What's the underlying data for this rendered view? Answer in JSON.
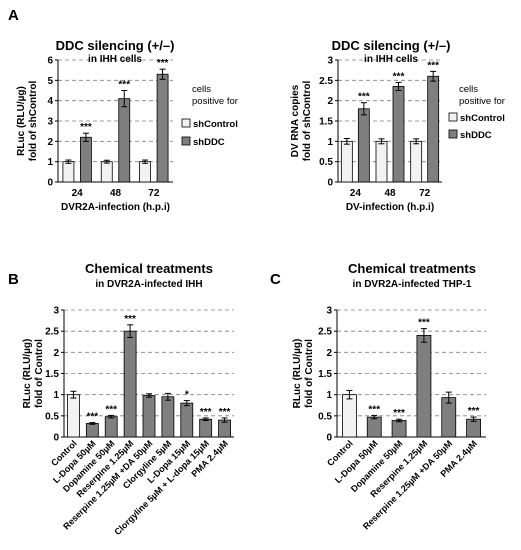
{
  "figure": {
    "panel_letters": [
      "A",
      "B",
      "C"
    ]
  },
  "colors": {
    "light_bar": "#f2f2f2",
    "dark_bar": "#7f7f7f",
    "axis": "#000000",
    "grid": "#808080"
  },
  "chart_data": [
    {
      "id": "A1",
      "type": "bar",
      "title": "DDC silencing (+/–)",
      "subtitle": "in IHH cells",
      "xlabel": "DVR2A-infection (h.p.i)",
      "ylabel": [
        "RLuc (RLU/µg)",
        "fold of shControl"
      ],
      "ylim": [
        0,
        6
      ],
      "yticks": [
        "0",
        "1",
        "2",
        "3",
        "4",
        "5",
        "6"
      ],
      "grid": "dashed-horizontal",
      "categories": [
        "24",
        "48",
        "72"
      ],
      "legend_title": [
        "cells",
        "positive for"
      ],
      "legend_position": "right",
      "series": [
        {
          "name": "shControl",
          "color": "#f2f2f2",
          "values": [
            1.0,
            1.0,
            1.0
          ],
          "errors": [
            0.08,
            0.07,
            0.08
          ],
          "sig": [
            "",
            "",
            ""
          ]
        },
        {
          "name": "shDDC",
          "color": "#7f7f7f",
          "values": [
            2.2,
            4.1,
            5.3
          ],
          "errors": [
            0.2,
            0.4,
            0.25
          ],
          "sig": [
            "***",
            "***",
            "***"
          ]
        }
      ]
    },
    {
      "id": "A2",
      "type": "bar",
      "title": "DDC silencing (+/–)",
      "subtitle": "in IHH cells",
      "xlabel": "DV-infection (h.p.i)",
      "ylabel": [
        "DV RNA copies",
        "fold of shControl"
      ],
      "ylim": [
        0,
        3
      ],
      "yticks": [
        "0",
        "0.5",
        "1",
        "1.5",
        "2",
        "2.5",
        "3"
      ],
      "grid": "dashed-horizontal",
      "categories": [
        "24",
        "48",
        "72"
      ],
      "legend_title": [
        "cells",
        "positive for"
      ],
      "legend_position": "right",
      "series": [
        {
          "name": "shControl",
          "color": "#f2f2f2",
          "values": [
            1.0,
            1.0,
            1.0
          ],
          "errors": [
            0.07,
            0.06,
            0.06
          ],
          "sig": [
            "",
            "",
            ""
          ]
        },
        {
          "name": "shDDC",
          "color": "#7f7f7f",
          "values": [
            1.8,
            2.35,
            2.6
          ],
          "errors": [
            0.15,
            0.1,
            0.12
          ],
          "sig": [
            "***",
            "***",
            "***"
          ]
        }
      ]
    },
    {
      "id": "B",
      "type": "bar",
      "title": "Chemical treatments",
      "subtitle": "in DVR2A-infected IHH",
      "xlabel": "",
      "ylabel": [
        "RLuc (RLU/µg)",
        "fold of Control"
      ],
      "ylim": [
        0,
        3
      ],
      "yticks": [
        "0",
        "0.5",
        "1",
        "1.5",
        "2",
        "2.5",
        "3"
      ],
      "grid": "dashed-horizontal",
      "categories": [
        "Control",
        "L-Dopa 50µM",
        "Dopamine 50µM",
        "Reserpine 1.25µM",
        "Reserpine 1.25µM +DA 50µM",
        "Clorgyline 5µM",
        "L-Dopa 15µM",
        "Clorgyline 5µM + L-dopa 15µM",
        "PMA 2.4µM"
      ],
      "colors": [
        "#f2f2f2",
        "#7f7f7f",
        "#7f7f7f",
        "#7f7f7f",
        "#7f7f7f",
        "#7f7f7f",
        "#7f7f7f",
        "#7f7f7f",
        "#7f7f7f"
      ],
      "values": [
        1.0,
        0.32,
        0.48,
        2.5,
        0.98,
        0.95,
        0.8,
        0.42,
        0.4
      ],
      "errors": [
        0.08,
        0.02,
        0.03,
        0.15,
        0.04,
        0.08,
        0.06,
        0.03,
        0.05
      ],
      "sig": [
        "",
        "***",
        "***",
        "***",
        "",
        "",
        "*",
        "***",
        "***"
      ]
    },
    {
      "id": "C",
      "type": "bar",
      "title": "Chemical treatments",
      "subtitle": "in DVR2A-infected THP-1",
      "xlabel": "",
      "ylabel": [
        "RLuc (RLU/µg)",
        "fold of Control"
      ],
      "ylim": [
        0,
        3
      ],
      "yticks": [
        "0",
        "0.5",
        "1",
        "1.5",
        "2",
        "2.5",
        "3"
      ],
      "grid": "dashed-horizontal",
      "categories": [
        "Control",
        "L-Dopa 50µM",
        "Dopamine 50µM",
        "Reserpine 1.25µM",
        "Reserpine 1.25µM +DA 50µM",
        "PMA 2.4µM"
      ],
      "colors": [
        "#f2f2f2",
        "#7f7f7f",
        "#7f7f7f",
        "#7f7f7f",
        "#7f7f7f",
        "#7f7f7f"
      ],
      "values": [
        1.0,
        0.47,
        0.39,
        2.4,
        0.93,
        0.42
      ],
      "errors": [
        0.1,
        0.04,
        0.03,
        0.16,
        0.13,
        0.05
      ],
      "sig": [
        "",
        "***",
        "***",
        "***",
        "",
        "***"
      ]
    }
  ]
}
